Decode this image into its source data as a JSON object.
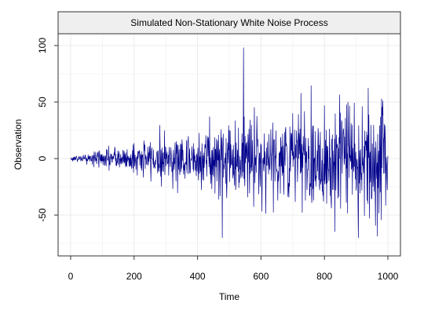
{
  "chart_data": {
    "type": "line",
    "title": "Simulated Non-Stationary White Noise Process",
    "xlabel": "Time",
    "ylabel": "Observation",
    "xlim": [
      0,
      1000
    ],
    "ylim": [
      -85,
      110
    ],
    "x_ticks": [
      0,
      200,
      400,
      600,
      800,
      1000
    ],
    "y_ticks": [
      -50,
      0,
      50,
      100
    ],
    "grid": true,
    "legend": "none",
    "series": [
      {
        "n_points": 1000,
        "x_start": 1,
        "x_end": 1000,
        "mean": 0,
        "sd_start": 1,
        "sd_end": 30,
        "max_value": 98,
        "max_at": 545,
        "min_value": -70,
        "min_at": 478,
        "color": "#00008B"
      }
    ]
  },
  "colors": {
    "strip_fill": "#EFEFEF",
    "grid": "#EBEBEB",
    "line": "#00008B"
  }
}
